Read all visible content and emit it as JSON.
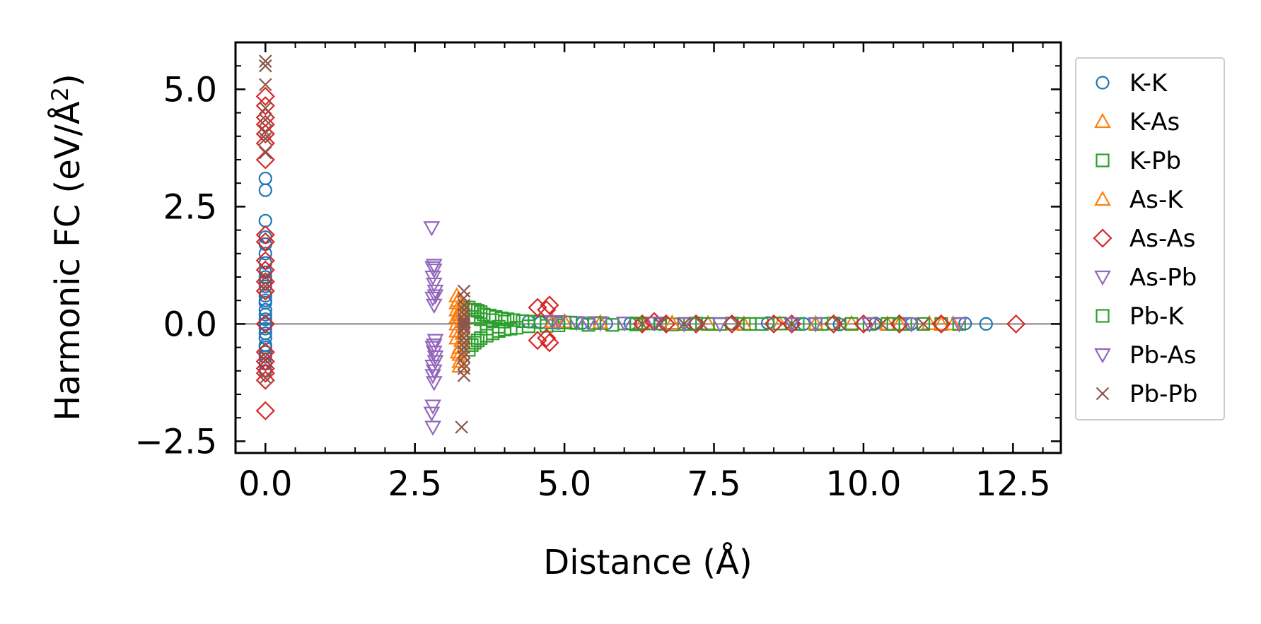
{
  "chart_data": {
    "type": "scatter",
    "xlabel": "Distance (Å)",
    "ylabel": "Harmonic FC (eV/Å²)",
    "ylabel_parts": {
      "main": "Harmonic FC (eV/Å",
      "sup": "2",
      "close": ")"
    },
    "xlim": [
      -0.5,
      13.3
    ],
    "ylim": [
      -2.75,
      6.0
    ],
    "xticks": [
      0.0,
      2.5,
      5.0,
      7.5,
      10.0,
      12.5
    ],
    "xtick_labels": [
      "0.0",
      "2.5",
      "5.0",
      "7.5",
      "10.0",
      "12.5"
    ],
    "yticks": [
      -2.5,
      0.0,
      2.5,
      5.0
    ],
    "ytick_labels": [
      "−2.5",
      "0.0",
      "2.5",
      "5.0"
    ],
    "zero_line": 0.0,
    "legend_position": "outside-right",
    "series": [
      {
        "name": "K-K",
        "marker": "circle",
        "color": "#1f77b4",
        "x": [
          0,
          0,
          0,
          0,
          0,
          0,
          0,
          0,
          0,
          0,
          0,
          0,
          0,
          0,
          0,
          0,
          0,
          0,
          0,
          0,
          0,
          0,
          0,
          0,
          0,
          0,
          0,
          4.4,
          4.6,
          4.9,
          5.3,
          5.7,
          6.1,
          6.6,
          7.2,
          7.8,
          8.4,
          9.0,
          9.6,
          10.2,
          10.8,
          11.3,
          11.7,
          12.05
        ],
        "y": [
          3.1,
          2.85,
          2.2,
          1.85,
          1.7,
          1.5,
          1.3,
          1.1,
          1.0,
          0.8,
          0.6,
          0.45,
          0.3,
          0.2,
          0.1,
          0.0,
          -0.1,
          -0.2,
          -0.3,
          -0.45,
          -0.6,
          -0.7,
          -0.85,
          -1.0,
          0.5,
          -0.5,
          0.9,
          0.05,
          0.03,
          0.02,
          0.02,
          0.01,
          0.01,
          0.0,
          0.0,
          0.01,
          0.02,
          0.0,
          -0.01,
          0.01,
          0.0,
          0.0,
          0.01,
          0.0
        ]
      },
      {
        "name": "K-As",
        "marker": "triangle-up",
        "color": "#ff7f0e",
        "x": [
          3.2,
          3.2,
          3.2,
          3.2,
          3.2,
          3.2,
          3.2,
          3.25,
          3.25,
          3.25,
          3.25,
          3.25,
          3.3,
          3.3,
          3.3,
          3.3,
          5.0,
          6.3,
          7.4,
          8.6,
          9.8,
          10.6,
          11.1,
          11.5
        ],
        "y": [
          0.6,
          0.45,
          0.3,
          0.15,
          0.0,
          -0.15,
          -0.3,
          -0.5,
          -0.65,
          -0.8,
          -0.9,
          0.2,
          0.4,
          -0.2,
          -0.4,
          0.05,
          0.05,
          0.02,
          0.01,
          0.0,
          0.01,
          0.0,
          0.01,
          0.0
        ]
      },
      {
        "name": "K-Pb",
        "marker": "square",
        "color": "#2ca02c",
        "x": [
          3.4,
          3.4,
          3.45,
          3.45,
          3.5,
          3.5,
          3.55,
          3.55,
          3.6,
          3.6,
          3.65,
          3.7,
          3.75,
          3.8,
          3.85,
          3.9,
          3.95,
          4.0,
          4.05,
          4.1,
          4.15,
          4.2,
          4.3,
          4.4,
          4.5,
          4.6,
          4.7,
          4.8,
          4.9,
          5.0,
          5.2,
          5.4,
          5.6,
          5.8,
          6.0,
          6.2,
          6.4,
          6.6,
          6.8,
          7.0,
          7.2,
          7.4,
          7.6,
          7.8,
          8.0,
          8.3,
          8.6,
          8.9,
          9.2,
          9.5,
          9.8,
          10.1,
          10.4,
          10.7,
          11.0,
          11.3,
          11.6
        ],
        "y": [
          0.35,
          -0.55,
          0.3,
          -0.45,
          0.3,
          -0.4,
          0.28,
          -0.35,
          0.25,
          -0.3,
          0.2,
          -0.25,
          0.18,
          -0.2,
          0.15,
          -0.15,
          0.12,
          -0.12,
          0.1,
          -0.1,
          0.08,
          -0.08,
          0.06,
          -0.05,
          0.05,
          0.04,
          -0.04,
          0.03,
          -0.03,
          0.03,
          0.02,
          -0.02,
          0.02,
          -0.02,
          0.01,
          -0.01,
          0.01,
          0.01,
          -0.01,
          0.0,
          0.01,
          0.0,
          0.0,
          0.01,
          0.0,
          0.0,
          0.01,
          0.0,
          0.0,
          0.01,
          0.0,
          0.0,
          0.0,
          0.0,
          0.0,
          0.0,
          0.0
        ]
      },
      {
        "name": "As-K",
        "marker": "triangle-up",
        "color": "#ff7f0e",
        "x": [
          3.22,
          3.22,
          3.28,
          3.28,
          4.8,
          5.6,
          6.8,
          8.0,
          9.2,
          10.4,
          11.3
        ],
        "y": [
          0.5,
          -0.6,
          0.35,
          -0.35,
          0.05,
          0.03,
          0.02,
          0.0,
          0.01,
          0.0,
          0.0
        ]
      },
      {
        "name": "As-As",
        "marker": "diamond",
        "color": "#d62728",
        "x": [
          0,
          0,
          0,
          0,
          0,
          0,
          0,
          0,
          0,
          0,
          0,
          0,
          0,
          0,
          0,
          0,
          0,
          0,
          0,
          0,
          4.55,
          4.55,
          4.7,
          4.7,
          4.75,
          4.75,
          6.3,
          6.5,
          6.7,
          7.2,
          7.8,
          8.5,
          8.8,
          9.5,
          10.0,
          10.6,
          11.3,
          12.55
        ],
        "y": [
          4.85,
          4.65,
          4.4,
          4.25,
          4.05,
          3.85,
          3.5,
          1.9,
          1.75,
          1.35,
          1.15,
          0.9,
          0.7,
          -0.6,
          -0.8,
          -0.95,
          -1.05,
          -1.2,
          -1.85,
          0.0,
          0.35,
          -0.35,
          0.3,
          -0.3,
          0.4,
          -0.4,
          0.0,
          0.05,
          0.0,
          0.0,
          0.0,
          0.0,
          0.0,
          0.0,
          0.0,
          0.0,
          0.0,
          0.0
        ]
      },
      {
        "name": "As-Pb",
        "marker": "triangle-down",
        "color": "#9467bd",
        "x": [
          2.78,
          2.8,
          2.82,
          2.8,
          2.82,
          2.84,
          2.8,
          2.82,
          2.84,
          2.8,
          2.82,
          2.84,
          2.8,
          2.82,
          2.8,
          2.82,
          2.8,
          2.78,
          2.8,
          4.8,
          5.2,
          5.6,
          6.0
        ],
        "y": [
          2.05,
          1.2,
          1.15,
          1.0,
          0.85,
          0.7,
          0.55,
          0.4,
          -0.35,
          -0.5,
          -0.6,
          -0.7,
          -0.9,
          -1.0,
          -1.1,
          -1.25,
          -1.75,
          -1.9,
          -2.2,
          0.05,
          0.03,
          0.02,
          0.02
        ]
      },
      {
        "name": "Pb-K",
        "marker": "square",
        "color": "#2ca02c",
        "x": [
          3.5,
          3.6,
          3.7,
          3.8,
          3.9,
          4.0,
          5.1,
          5.5,
          6.2,
          7.1,
          8.1,
          9.3,
          10.5
        ],
        "y": [
          0.15,
          0.1,
          -0.1,
          0.08,
          -0.06,
          0.05,
          0.03,
          0.02,
          0.01,
          0.0,
          0.0,
          0.0,
          0.0
        ]
      },
      {
        "name": "Pb-As",
        "marker": "triangle-down",
        "color": "#9467bd",
        "x": [
          2.82,
          2.84,
          2.82,
          2.84,
          4.9,
          5.4,
          6.5,
          7.0,
          7.6,
          8.8,
          9.2,
          10.1,
          10.8,
          11.6
        ],
        "y": [
          1.25,
          0.6,
          -0.45,
          -0.8,
          0.05,
          0.02,
          0.02,
          0.0,
          0.0,
          0.0,
          0.0,
          0.0,
          0.0,
          0.0
        ]
      },
      {
        "name": "Pb-Pb",
        "marker": "x",
        "color": "#8c564b",
        "x": [
          0,
          0,
          0,
          0,
          0,
          0,
          0,
          0,
          0,
          0,
          0,
          0,
          3.32,
          3.32,
          3.32,
          3.32,
          3.32,
          3.32,
          3.32,
          3.32,
          3.32,
          3.32,
          3.32,
          3.32,
          3.32,
          3.32,
          3.32,
          3.32,
          3.32,
          3.32,
          3.32,
          3.28,
          6.3,
          6.6,
          7.0,
          7.3,
          7.9,
          8.8,
          9.6,
          10.3,
          11.0
        ],
        "y": [
          5.6,
          5.5,
          5.1,
          4.6,
          4.35,
          4.1,
          3.95,
          3.65,
          1.0,
          0.8,
          -0.7,
          -1.15,
          0.7,
          0.55,
          0.4,
          0.3,
          0.2,
          0.1,
          0.05,
          0.0,
          -0.05,
          -0.1,
          -0.2,
          -0.3,
          -0.4,
          -0.5,
          -0.6,
          -0.7,
          -0.85,
          -1.1,
          -0.95,
          -2.2,
          0.0,
          0.0,
          0.0,
          0.0,
          0.0,
          0.0,
          0.0,
          0.0,
          0.0
        ]
      }
    ]
  }
}
